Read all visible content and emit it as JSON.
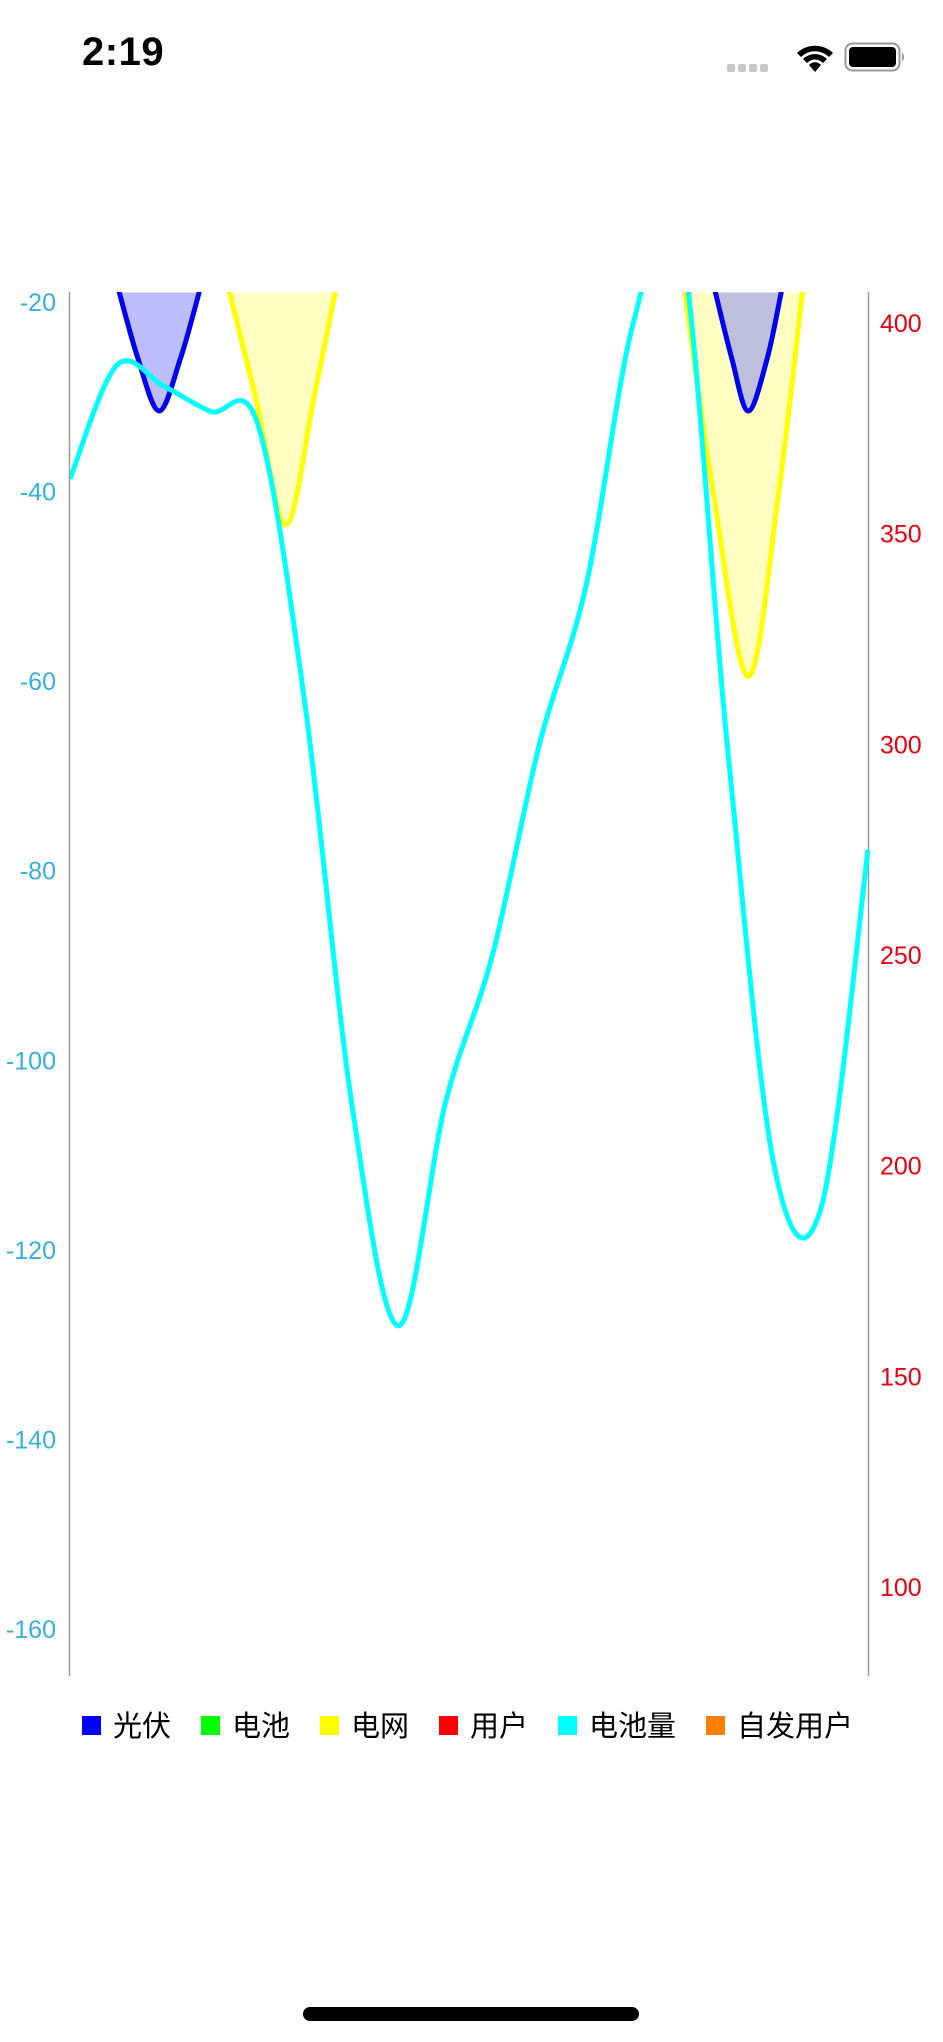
{
  "status_bar": {
    "time": "2:19",
    "signal_icon": "cellular-signal-icon",
    "wifi_icon": "wifi-icon",
    "battery_icon": "battery-icon"
  },
  "chart_data": {
    "type": "line",
    "title": "",
    "xlabel": "",
    "grid": false,
    "legend_position": "bottom-left",
    "left_axis": {
      "color": "#37b0dc",
      "ticks": [
        -20,
        -40,
        -60,
        -80,
        -100,
        -120,
        -140,
        -160
      ],
      "ylim": [
        -160,
        -20
      ]
    },
    "right_axis": {
      "color": "#e60012",
      "ticks": [
        400,
        350,
        300,
        250,
        200,
        150,
        100
      ],
      "ylim": [
        80,
        405
      ]
    },
    "x": [
      0,
      1,
      2,
      3,
      4,
      5,
      6,
      7,
      8,
      9,
      10,
      11,
      12,
      13,
      14,
      15,
      16,
      17
    ],
    "series": [
      {
        "name": "光伏",
        "color": "#0000ff",
        "axis": "left",
        "type": "area",
        "segments": [
          [
            [
              1.05,
              -19
            ],
            [
              1.45,
              -26
            ],
            [
              1.9,
              -31.5
            ],
            [
              2.35,
              -26
            ],
            [
              2.75,
              -19
            ]
          ],
          [
            [
              13.75,
              -19
            ],
            [
              14.1,
              -26
            ],
            [
              14.45,
              -31.5
            ],
            [
              14.85,
              -26
            ],
            [
              15.15,
              -19
            ]
          ]
        ]
      },
      {
        "name": "电池",
        "color": "#00ff00",
        "axis": "left",
        "type": "line",
        "segments": []
      },
      {
        "name": "电网",
        "color": "#ffff00",
        "axis": "left",
        "type": "area",
        "segments": [
          [
            [
              3.4,
              -19
            ],
            [
              3.95,
              -30
            ],
            [
              4.6,
              -43.5
            ],
            [
              5.2,
              -30
            ],
            [
              5.65,
              -19
            ]
          ],
          [
            [
              13.1,
              -19
            ],
            [
              13.7,
              -40
            ],
            [
              14.45,
              -59.5
            ],
            [
              15.1,
              -40
            ],
            [
              15.6,
              -19
            ]
          ]
        ]
      },
      {
        "name": "用户",
        "color": "#ff0000",
        "axis": "left",
        "type": "line",
        "segments": []
      },
      {
        "name": "电池量",
        "color": "#00ffff",
        "axis": "right",
        "type": "line",
        "values": [
          363,
          390,
          385,
          379,
          376,
          310,
          215,
          162,
          215,
          250,
          300,
          338,
          400,
          420,
          300,
          200,
          190,
          275
        ]
      },
      {
        "name": "自发用户",
        "color": "#ff8000",
        "axis": "left",
        "type": "line",
        "segments": []
      }
    ]
  }
}
